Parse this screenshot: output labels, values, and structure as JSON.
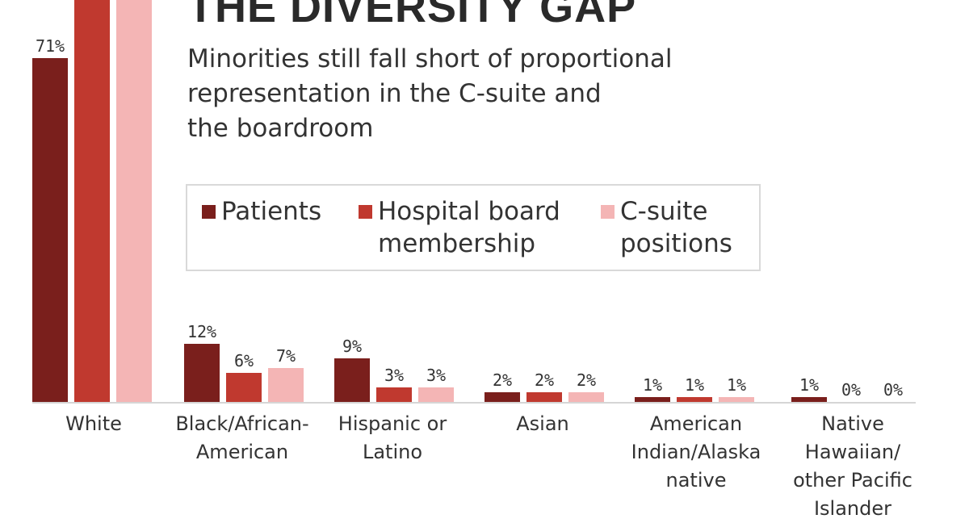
{
  "chart_data": {
    "type": "bar",
    "title": "THE DIVERSITY GAP",
    "subtitle": [
      "Minorities still fall short of proportional",
      "representation in the C-suite and",
      "the boardroom"
    ],
    "categories": [
      "White",
      "Black/African-American",
      "Hispanic or Latino",
      "Asian",
      "American Indian/Alaska native",
      "Native Hawaiian/other Pacific Islander"
    ],
    "category_label_lines": [
      [
        "White"
      ],
      [
        "Black/African-",
        "American"
      ],
      [
        "Hispanic or",
        "Latino"
      ],
      [
        "Asian"
      ],
      [
        "American",
        "Indian/Alaska",
        "native"
      ],
      [
        "Native",
        "Hawaiian/",
        "other Pacific",
        "Islander"
      ]
    ],
    "series": [
      {
        "name": "Patients",
        "legend_lines": [
          "Patients"
        ],
        "color": "#7a1f1c",
        "values": [
          71,
          12,
          9,
          2,
          1,
          1
        ],
        "labels": [
          "71%",
          "12%",
          "9%",
          "2%",
          "1%",
          "1%"
        ]
      },
      {
        "name": "Hospital board membership",
        "legend_lines": [
          "Hospital board",
          "membership"
        ],
        "color": "#c0392f",
        "values": [
          86,
          6,
          3,
          2,
          1,
          0
        ],
        "labels": [
          "",
          "6%",
          "3%",
          "2%",
          "1%",
          "0%"
        ]
      },
      {
        "name": "C-suite positions",
        "legend_lines": [
          "C-suite",
          "positions"
        ],
        "color": "#f4b5b5",
        "values": [
          90,
          7,
          3,
          2,
          1,
          0
        ],
        "labels": [
          "",
          "7%",
          "3%",
          "2%",
          "1%",
          "0%"
        ]
      }
    ],
    "xlabel": "",
    "ylabel": "",
    "ylim": [
      0,
      100
    ],
    "grid": false,
    "legend_position": "top"
  }
}
